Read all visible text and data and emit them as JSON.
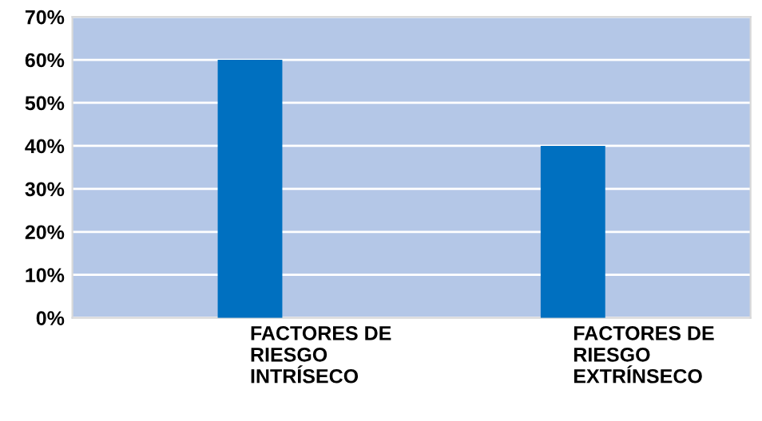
{
  "chart_data": {
    "type": "bar",
    "categories": [
      "FACTORES DE\nRIESGO\nINTRÍSECO",
      "FACTORES DE\nRIESGO\nEXTRÍNSECO"
    ],
    "values": [
      60,
      40
    ],
    "color": "#0070c0",
    "ylim": [
      0,
      70
    ],
    "yticks": [
      {
        "value": 0,
        "label": "0%"
      },
      {
        "value": 10,
        "label": "10%"
      },
      {
        "value": 20,
        "label": "20%"
      },
      {
        "value": 30,
        "label": "30%"
      },
      {
        "value": 40,
        "label": "40%"
      },
      {
        "value": 50,
        "label": "50%"
      },
      {
        "value": 60,
        "label": "60%"
      },
      {
        "value": 70,
        "label": "70%"
      }
    ],
    "grid": "y"
  }
}
